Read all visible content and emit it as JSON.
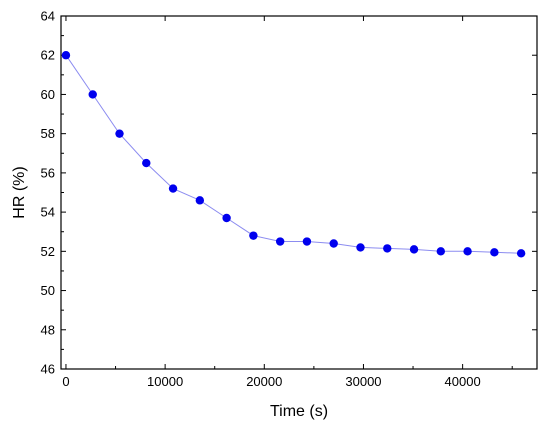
{
  "chart_data": {
    "type": "scatter",
    "title": "",
    "xlabel": "Time (s)",
    "ylabel": "HR (%)",
    "xlim": [
      -500,
      47500
    ],
    "ylim": [
      46,
      64
    ],
    "xticks": [
      0,
      10000,
      20000,
      30000,
      40000
    ],
    "yticks": [
      46,
      48,
      50,
      52,
      54,
      56,
      58,
      60,
      62,
      64
    ],
    "grid": false,
    "legend": "none",
    "series": [
      {
        "x": [
          0,
          2700,
          5400,
          8100,
          10800,
          13500,
          16200,
          18900,
          21600,
          24300,
          27000,
          29700,
          32400,
          35100,
          37800,
          40500,
          43200,
          45900
        ],
        "y": [
          62.0,
          60.0,
          58.0,
          56.5,
          55.2,
          54.6,
          53.7,
          52.8,
          52.5,
          52.5,
          52.4,
          52.2,
          52.15,
          52.1,
          52.0,
          52.0,
          51.95,
          51.9
        ],
        "marker_color": "#0000ee",
        "line_color": "#8c8cf0"
      }
    ]
  }
}
